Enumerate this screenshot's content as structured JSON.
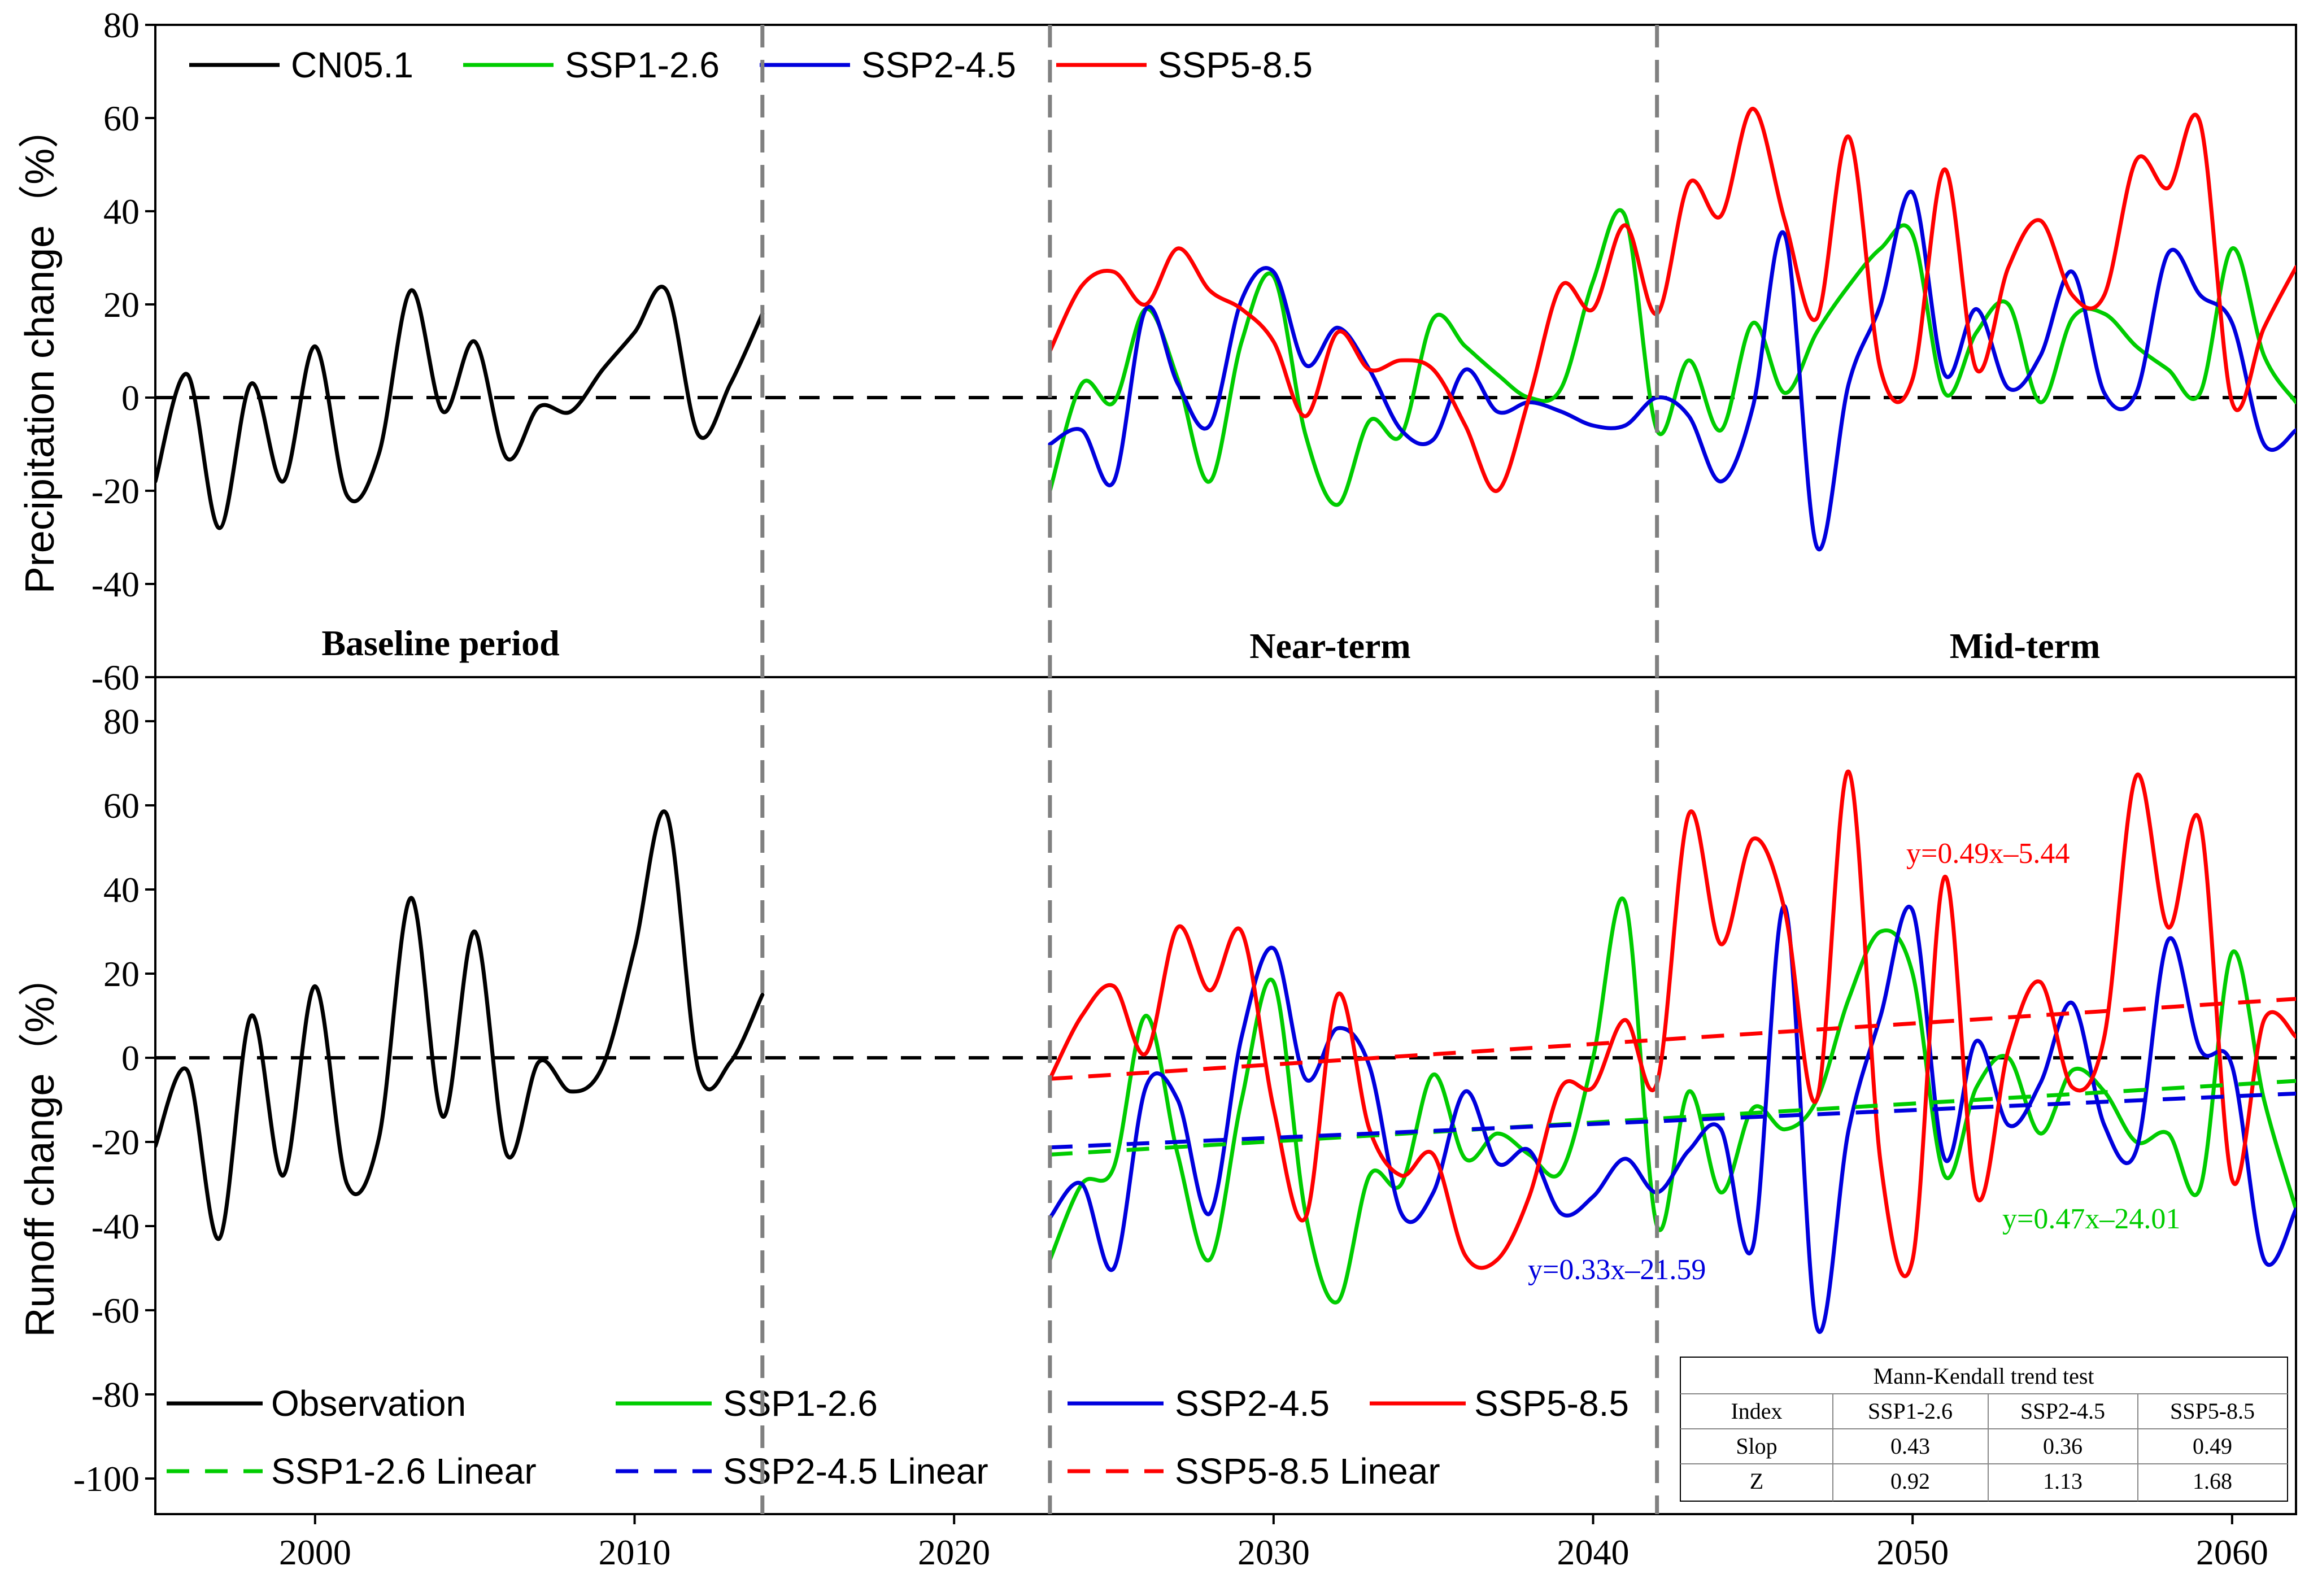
{
  "chart_data": [
    {
      "type": "line",
      "title": "",
      "ylabel": "Precipitation change（%）",
      "xlabel": "",
      "xlim": [
        1995,
        2062
      ],
      "ylim": [
        -60,
        80
      ],
      "yticks": [
        -60,
        -40,
        -20,
        0,
        20,
        40,
        60,
        80
      ],
      "period_labels": [
        "Baseline period",
        "Near-term",
        "Mid-term"
      ],
      "period_boundaries": [
        2014,
        2023,
        2042
      ],
      "zero_line": true,
      "legend": [
        "CN05.1",
        "SSP1-2.6",
        "SSP2-4.5",
        "SSP5-8.5"
      ],
      "series": [
        {
          "name": "CN05.1",
          "color": "#000000",
          "x": [
            1995,
            1996,
            1997,
            1998,
            1999,
            2000,
            2001,
            2002,
            2003,
            2004,
            2005,
            2006,
            2007,
            2008,
            2009,
            2010,
            2011,
            2012,
            2013,
            2014
          ],
          "values": [
            -18,
            5,
            -28,
            3,
            -18,
            11,
            -21,
            -12,
            23,
            -3,
            12,
            -13,
            -2,
            -3,
            6,
            14,
            23,
            -8,
            3,
            18
          ]
        },
        {
          "name": "SSP1-2.6",
          "color": "#00cc00",
          "x": [
            2023,
            2024,
            2025,
            2026,
            2027,
            2028,
            2029,
            2030,
            2031,
            2032,
            2033,
            2034,
            2035,
            2036,
            2037,
            2038,
            2039,
            2040,
            2041,
            2042,
            2043,
            2044,
            2045,
            2046,
            2047,
            2048,
            2049,
            2050,
            2051,
            2052,
            2053,
            2054,
            2055,
            2056,
            2057,
            2058,
            2059,
            2060,
            2061,
            2062
          ],
          "values": [
            -20,
            3,
            -1,
            19,
            4,
            -18,
            12,
            26,
            -8,
            -23,
            -5,
            -8,
            17,
            11,
            5,
            0,
            2,
            25,
            39,
            -7,
            8,
            -7,
            16,
            1,
            14,
            24,
            32,
            35,
            1,
            14,
            20,
            -1,
            17,
            18,
            11,
            6,
            1,
            32,
            9,
            -1
          ]
        },
        {
          "name": "SSP2-4.5",
          "color": "#0000dd",
          "x": [
            2023,
            2024,
            2025,
            2026,
            2027,
            2028,
            2029,
            2030,
            2031,
            2032,
            2033,
            2034,
            2035,
            2036,
            2037,
            2038,
            2039,
            2040,
            2041,
            2042,
            2043,
            2044,
            2045,
            2046,
            2047,
            2048,
            2049,
            2050,
            2051,
            2052,
            2053,
            2054,
            2055,
            2056,
            2057,
            2058,
            2059,
            2060,
            2061,
            2062
          ],
          "values": [
            -10,
            -7,
            -18,
            19,
            3,
            -6,
            21,
            27,
            7,
            15,
            6,
            -7,
            -9,
            6,
            -3,
            -1,
            -3,
            -6,
            -6,
            0,
            -4,
            -18,
            -2,
            35,
            -32,
            3,
            20,
            44,
            5,
            19,
            2,
            9,
            27,
            1,
            1,
            31,
            22,
            16,
            -10,
            -7
          ]
        },
        {
          "name": "SSP5-8.5",
          "color": "#ff0000",
          "x": [
            2023,
            2024,
            2025,
            2026,
            2027,
            2028,
            2029,
            2030,
            2031,
            2032,
            2033,
            2034,
            2035,
            2036,
            2037,
            2038,
            2039,
            2040,
            2041,
            2042,
            2043,
            2044,
            2045,
            2046,
            2047,
            2048,
            2049,
            2050,
            2051,
            2052,
            2053,
            2054,
            2055,
            2056,
            2057,
            2058,
            2059,
            2060,
            2061,
            2062
          ],
          "values": [
            10,
            24,
            27,
            20,
            32,
            23,
            19,
            12,
            -4,
            14,
            6,
            8,
            6,
            -6,
            -20,
            0,
            24,
            19,
            37,
            18,
            46,
            39,
            62,
            38,
            17,
            56,
            6,
            4,
            49,
            6,
            28,
            38,
            22,
            22,
            51,
            45,
            59,
            -1,
            15,
            28
          ]
        }
      ]
    },
    {
      "type": "line",
      "title": "",
      "ylabel": "Runoff change（%）",
      "xlabel": "",
      "xlim": [
        1995,
        2062
      ],
      "ylim": [
        -110,
        90
      ],
      "xticks": [
        2000,
        2010,
        2020,
        2030,
        2040,
        2050,
        2060
      ],
      "yticks": [
        -100,
        -80,
        -60,
        -40,
        -20,
        0,
        20,
        40,
        60,
        80
      ],
      "zero_line": true,
      "legend": [
        "Observation",
        "SSP1-2.6",
        "SSP2-4.5",
        "SSP5-8.5",
        "SSP1-2.6 Linear",
        "SSP2-4.5 Linear",
        "SSP5-8.5 Linear"
      ],
      "series": [
        {
          "name": "Observation",
          "color": "#000000",
          "x": [
            1995,
            1996,
            1997,
            1998,
            1999,
            2000,
            2001,
            2002,
            2003,
            2004,
            2005,
            2006,
            2007,
            2008,
            2009,
            2010,
            2011,
            2012,
            2013,
            2014
          ],
          "values": [
            -21,
            -3,
            -43,
            10,
            -28,
            17,
            -30,
            -19,
            38,
            -14,
            30,
            -23,
            -1,
            -8,
            -2,
            26,
            58,
            -3,
            -1,
            15
          ]
        },
        {
          "name": "SSP1-2.6",
          "color": "#00cc00",
          "x": [
            2023,
            2024,
            2025,
            2026,
            2027,
            2028,
            2029,
            2030,
            2031,
            2032,
            2033,
            2034,
            2035,
            2036,
            2037,
            2038,
            2039,
            2040,
            2041,
            2042,
            2043,
            2044,
            2045,
            2046,
            2047,
            2048,
            2049,
            2050,
            2051,
            2052,
            2053,
            2054,
            2055,
            2056,
            2057,
            2058,
            2059,
            2060,
            2061,
            2062
          ],
          "values": [
            -48,
            -30,
            -26,
            10,
            -23,
            -48,
            -10,
            18,
            -37,
            -58,
            -28,
            -30,
            -4,
            -24,
            -18,
            -23,
            -27,
            0,
            37,
            -40,
            -8,
            -32,
            -12,
            -17,
            -10,
            14,
            30,
            20,
            -28,
            -7,
            0,
            -18,
            -3,
            -8,
            -20,
            -18,
            -31,
            25,
            -10,
            -36
          ]
        },
        {
          "name": "SSP2-4.5",
          "color": "#0000dd",
          "x": [
            2023,
            2024,
            2025,
            2026,
            2027,
            2028,
            2029,
            2030,
            2031,
            2032,
            2033,
            2034,
            2035,
            2036,
            2037,
            2038,
            2039,
            2040,
            2041,
            2042,
            2043,
            2044,
            2045,
            2046,
            2047,
            2048,
            2049,
            2050,
            2051,
            2052,
            2053,
            2054,
            2055,
            2056,
            2057,
            2058,
            2059,
            2060,
            2061,
            2062
          ],
          "values": [
            -38,
            -30,
            -50,
            -7,
            -10,
            -37,
            5,
            26,
            -5,
            7,
            -2,
            -37,
            -32,
            -8,
            -25,
            -22,
            -37,
            -33,
            -24,
            -32,
            -22,
            -17,
            -45,
            36,
            -64,
            -17,
            10,
            35,
            -24,
            4,
            -16,
            -6,
            13,
            -16,
            -22,
            28,
            2,
            -2,
            -48,
            -36
          ]
        },
        {
          "name": "SSP5-8.5",
          "color": "#ff0000",
          "x": [
            2023,
            2024,
            2025,
            2026,
            2027,
            2028,
            2029,
            2030,
            2031,
            2032,
            2033,
            2034,
            2035,
            2036,
            2037,
            2038,
            2039,
            2040,
            2041,
            2042,
            2043,
            2044,
            2045,
            2046,
            2047,
            2048,
            2049,
            2050,
            2051,
            2052,
            2053,
            2054,
            2055,
            2056,
            2057,
            2058,
            2059,
            2060,
            2061,
            2062
          ],
          "values": [
            -5,
            10,
            17,
            1,
            31,
            16,
            30,
            -12,
            -38,
            15,
            -17,
            -28,
            -23,
            -47,
            -48,
            -33,
            -7,
            -7,
            9,
            -6,
            58,
            27,
            52,
            35,
            -10,
            68,
            -25,
            -48,
            43,
            -33,
            2,
            18,
            -7,
            5,
            67,
            31,
            56,
            -29,
            9,
            5
          ]
        },
        {
          "name": "SSP1-2.6 Linear",
          "color": "#00cc00",
          "dashed": true,
          "x": [
            2023,
            2062
          ],
          "values": [
            -23,
            -5.5
          ]
        },
        {
          "name": "SSP2-4.5 Linear",
          "color": "#0000dd",
          "dashed": true,
          "x": [
            2023,
            2062
          ],
          "values": [
            -21.3,
            -8.5
          ]
        },
        {
          "name": "SSP5-8.5 Linear",
          "color": "#ff0000",
          "dashed": true,
          "x": [
            2023,
            2062
          ],
          "values": [
            -5,
            14
          ]
        }
      ],
      "annotations": [
        {
          "text": "y=0.49x–5.44",
          "color": "#ff0000"
        },
        {
          "text": "y=0.47x–24.01",
          "color": "#00cc00"
        },
        {
          "text": "y=0.33x–21.59",
          "color": "#0000dd"
        }
      ],
      "mk_table": {
        "title": "Mann-Kendall trend test",
        "headers": [
          "Index",
          "SSP1-2.6",
          "SSP2-4.5",
          "SSP5-8.5"
        ],
        "rows": [
          [
            "Slop",
            "0.43",
            "0.36",
            "0.49"
          ],
          [
            "Z",
            "0.92",
            "1.13",
            "1.68"
          ]
        ]
      }
    }
  ]
}
